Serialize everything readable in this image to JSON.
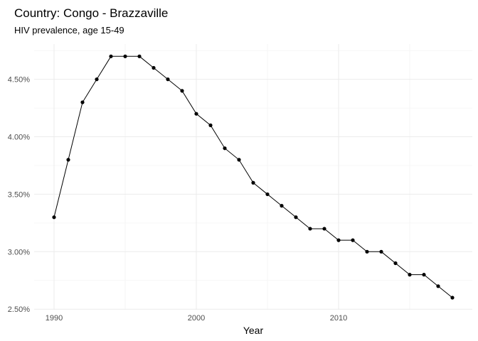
{
  "chart_data": {
    "type": "line",
    "title": "Country: Congo - Brazzaville",
    "subtitle": "HIV prevalence, age 15-49",
    "xlabel": "Year",
    "ylabel": "",
    "xlim": [
      1988.6,
      2019.4
    ],
    "ylim": [
      2.495,
      4.807
    ],
    "x_ticks": [
      1990,
      2000,
      2010
    ],
    "x_minor_ticks": [
      1995,
      2005,
      2015
    ],
    "y_ticks": [
      2.5,
      3.0,
      3.5,
      4.0,
      4.5
    ],
    "y_tick_labels": [
      "2.50%",
      "3.00%",
      "3.50%",
      "4.00%",
      "4.50%"
    ],
    "y_minor_ticks": [
      2.75,
      3.25,
      3.75,
      4.25,
      4.75
    ],
    "grid": true,
    "legend": "none",
    "series": [
      {
        "color": "#000000",
        "x": [
          1990,
          1991,
          1992,
          1993,
          1994,
          1995,
          1996,
          1997,
          1998,
          1999,
          2000,
          2001,
          2002,
          2003,
          2004,
          2005,
          2006,
          2007,
          2008,
          2009,
          2010,
          2011,
          2012,
          2013,
          2014,
          2015,
          2016,
          2017,
          2018
        ],
        "values": [
          3.3,
          3.8,
          4.3,
          4.5,
          4.7,
          4.7,
          4.7,
          4.6,
          4.5,
          4.4,
          4.2,
          4.1,
          3.9,
          3.8,
          3.6,
          3.5,
          3.4,
          3.3,
          3.2,
          3.2,
          3.1,
          3.1,
          3.0,
          3.0,
          2.9,
          2.8,
          2.8,
          2.7,
          2.6
        ]
      }
    ]
  }
}
